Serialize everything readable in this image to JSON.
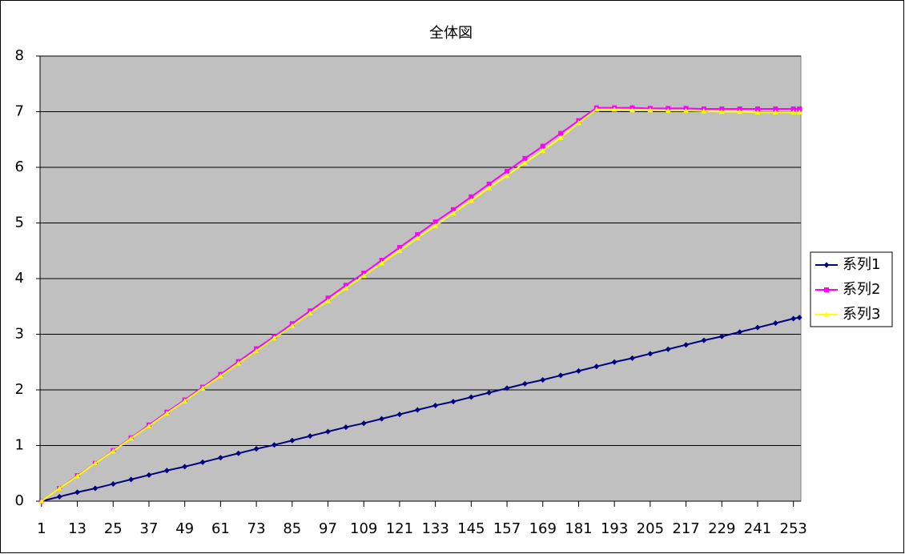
{
  "chart_data": {
    "type": "line",
    "title": "全体図",
    "x": [
      1,
      7,
      13,
      19,
      25,
      31,
      37,
      43,
      49,
      55,
      61,
      67,
      73,
      79,
      85,
      91,
      97,
      103,
      109,
      115,
      121,
      127,
      133,
      139,
      145,
      151,
      157,
      163,
      169,
      175,
      181,
      187,
      193,
      199,
      205,
      211,
      217,
      223,
      229,
      235,
      241,
      247,
      253,
      255
    ],
    "series": [
      {
        "name": "系列1",
        "color": "#000080",
        "marker": "diamond",
        "values": [
          0,
          0.08,
          0.16,
          0.23,
          0.31,
          0.39,
          0.47,
          0.55,
          0.62,
          0.7,
          0.78,
          0.86,
          0.94,
          1.01,
          1.09,
          1.17,
          1.25,
          1.33,
          1.4,
          1.48,
          1.56,
          1.64,
          1.72,
          1.79,
          1.87,
          1.95,
          2.03,
          2.11,
          2.18,
          2.26,
          2.34,
          2.42,
          2.5,
          2.57,
          2.65,
          2.73,
          2.81,
          2.89,
          2.96,
          3.04,
          3.12,
          3.2,
          3.28,
          3.3
        ]
      },
      {
        "name": "系列2",
        "color": "#ff00ff",
        "marker": "square",
        "values": [
          0,
          0.23,
          0.46,
          0.68,
          0.91,
          1.14,
          1.37,
          1.6,
          1.82,
          2.05,
          2.28,
          2.51,
          2.74,
          2.96,
          3.19,
          3.42,
          3.65,
          3.88,
          4.1,
          4.33,
          4.56,
          4.79,
          5.02,
          5.24,
          5.47,
          5.7,
          5.93,
          6.16,
          6.38,
          6.61,
          6.84,
          7.07,
          7.07,
          7.07,
          7.06,
          7.06,
          7.06,
          7.05,
          7.05,
          7.05,
          7.05,
          7.05,
          7.05,
          7.05
        ]
      },
      {
        "name": "系列3",
        "color": "#ffff00",
        "marker": "triangle",
        "values": [
          0,
          0.23,
          0.45,
          0.68,
          0.9,
          1.13,
          1.35,
          1.58,
          1.8,
          2.03,
          2.25,
          2.48,
          2.7,
          2.93,
          3.15,
          3.38,
          3.6,
          3.83,
          4.05,
          4.28,
          4.5,
          4.73,
          4.95,
          5.18,
          5.4,
          5.63,
          5.85,
          6.08,
          6.3,
          6.53,
          6.8,
          7.04,
          7.04,
          7.03,
          7.03,
          7.02,
          7.02,
          7.01,
          7.0,
          7.0,
          6.99,
          6.99,
          6.99,
          6.99
        ]
      }
    ],
    "xlim": [
      0.5,
      255.5
    ],
    "xticks": [
      1,
      13,
      25,
      37,
      49,
      61,
      73,
      85,
      97,
      109,
      121,
      133,
      145,
      157,
      169,
      181,
      193,
      205,
      217,
      229,
      241,
      253
    ],
    "ylim": [
      0,
      8
    ],
    "yticks": [
      0,
      1,
      2,
      3,
      4,
      5,
      6,
      7,
      8
    ],
    "grid": true,
    "legend": "right"
  }
}
